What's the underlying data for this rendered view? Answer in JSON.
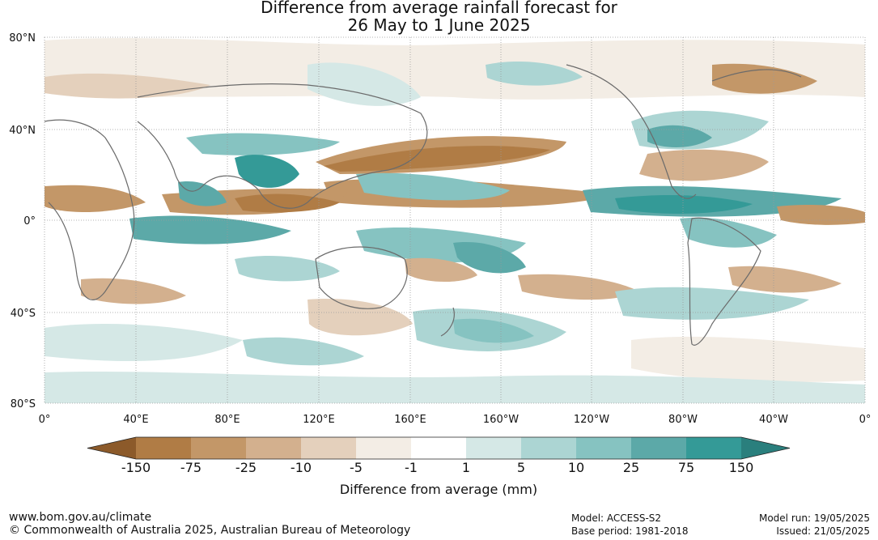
{
  "title": {
    "line1": "Difference from average rainfall forecast for",
    "line2": "26 May to 1 June 2025"
  },
  "axes": {
    "lat_labels": [
      "80°N",
      "40°N",
      "0°",
      "40°S",
      "80°S"
    ],
    "lon_labels": [
      "0°",
      "40°E",
      "80°E",
      "120°E",
      "160°E",
      "160°W",
      "120°W",
      "80°W",
      "40°W",
      "0°"
    ]
  },
  "colorbar": {
    "label": "Difference from average (mm)",
    "ticks": [
      "-150",
      "-75",
      "-25",
      "-10",
      "-5",
      "-1",
      "1",
      "5",
      "10",
      "25",
      "75",
      "150"
    ],
    "colors": [
      "#8c5a2a",
      "#b07c45",
      "#c39768",
      "#d3b08e",
      "#e4d0bc",
      "#f3ede5",
      "#ffffff",
      "#d5e8e6",
      "#acd5d3",
      "#86c3c1",
      "#5ca9a8",
      "#349a97",
      "#2a7f7d"
    ]
  },
  "footer": {
    "url": "www.bom.gov.au/climate",
    "copyright": "© Commonwealth of Australia 2025, Australian Bureau of Meteorology",
    "model": "Model: ACCESS-S2",
    "base_period": "Base period: 1981-2018",
    "model_run": "Model run: 19/05/2025",
    "issued": "Issued: 21/05/2025"
  }
}
